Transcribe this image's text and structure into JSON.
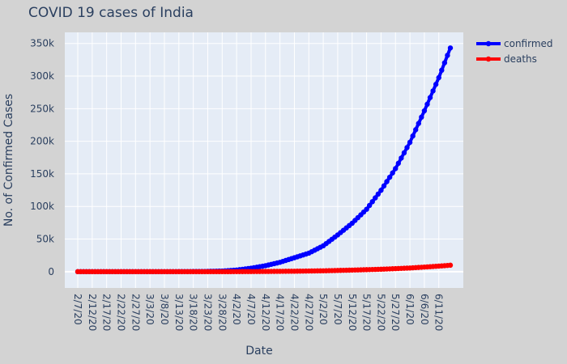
{
  "chart_data": {
    "type": "line",
    "title": "COVID 19 cases of India",
    "xlabel": "Date",
    "ylabel": "No. of Confirmed Cases",
    "x_start": "2/7/20",
    "x_end": "6/15/20",
    "x_tick_labels": [
      "2/7/20",
      "2/12/20",
      "2/17/20",
      "2/22/20",
      "2/27/20",
      "3/3/20",
      "3/8/20",
      "3/13/20",
      "3/18/20",
      "3/23/20",
      "3/28/20",
      "4/2/20",
      "4/7/20",
      "4/12/20",
      "4/17/20",
      "4/22/20",
      "4/27/20",
      "5/2/20",
      "5/7/20",
      "5/12/20",
      "5/17/20",
      "5/22/20",
      "5/27/20",
      "6/1/20",
      "6/6/20",
      "6/11/20"
    ],
    "y_tick_labels": [
      "0",
      "50k",
      "100k",
      "150k",
      "200k",
      "250k",
      "300k",
      "350k"
    ],
    "y_ticks": [
      0,
      50000,
      100000,
      150000,
      200000,
      250000,
      300000,
      350000
    ],
    "ylim": [
      -25000,
      367000
    ],
    "grid": true,
    "legend": "top-right",
    "series": [
      {
        "name": "confirmed",
        "color": "#0000ff",
        "points": [
          {
            "date": "2/7/20",
            "value": 3
          },
          {
            "date": "3/2/20",
            "value": 5
          },
          {
            "date": "3/12/20",
            "value": 73
          },
          {
            "date": "3/22/20",
            "value": 396
          },
          {
            "date": "3/28/20",
            "value": 987
          },
          {
            "date": "4/2/20",
            "value": 2543
          },
          {
            "date": "4/7/20",
            "value": 5311
          },
          {
            "date": "4/12/20",
            "value": 9152
          },
          {
            "date": "4/17/20",
            "value": 14352
          },
          {
            "date": "4/22/20",
            "value": 21370
          },
          {
            "date": "4/27/20",
            "value": 28380
          },
          {
            "date": "5/2/20",
            "value": 39699
          },
          {
            "date": "5/7/20",
            "value": 56351
          },
          {
            "date": "5/12/20",
            "value": 74292
          },
          {
            "date": "5/17/20",
            "value": 95698
          },
          {
            "date": "5/22/20",
            "value": 124794
          },
          {
            "date": "5/27/20",
            "value": 158086
          },
          {
            "date": "6/1/20",
            "value": 198370
          },
          {
            "date": "6/6/20",
            "value": 246622
          },
          {
            "date": "6/11/20",
            "value": 297535
          },
          {
            "date": "6/15/20",
            "value": 343091
          }
        ]
      },
      {
        "name": "deaths",
        "color": "#ff0000",
        "points": [
          {
            "date": "2/7/20",
            "value": 0
          },
          {
            "date": "3/12/20",
            "value": 1
          },
          {
            "date": "3/22/20",
            "value": 7
          },
          {
            "date": "4/2/20",
            "value": 72
          },
          {
            "date": "4/12/20",
            "value": 331
          },
          {
            "date": "4/22/20",
            "value": 681
          },
          {
            "date": "5/2/20",
            "value": 1323
          },
          {
            "date": "5/12/20",
            "value": 2415
          },
          {
            "date": "5/22/20",
            "value": 3720
          },
          {
            "date": "6/1/20",
            "value": 5608
          },
          {
            "date": "6/11/20",
            "value": 8498
          },
          {
            "date": "6/15/20",
            "value": 9900
          }
        ]
      }
    ]
  }
}
